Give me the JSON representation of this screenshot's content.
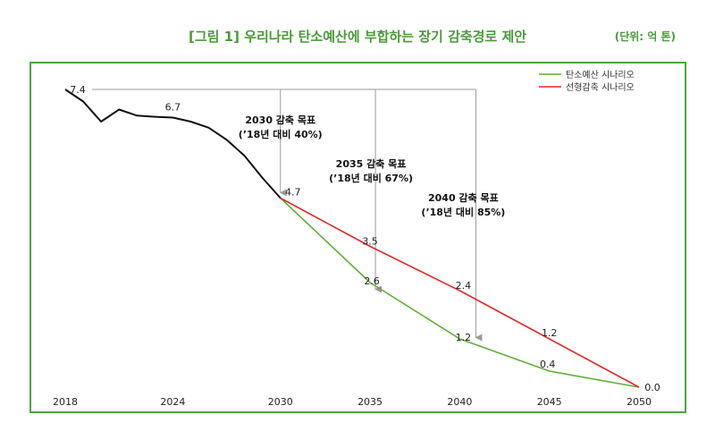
{
  "title": "[그림 1] 우리나라 탄소예산에 부합하는 장기 감축경로 제안",
  "unit": "(단위: 억 톤)",
  "colors": {
    "history": "#111111",
    "carbon_budget": "#5fae3a",
    "linear": "#e02a2a",
    "frame": "#4aa63e",
    "title": "#4a9a3a",
    "guide": "#9a9a9a"
  },
  "chart_data": {
    "type": "line",
    "x_ticks": [
      2018,
      2024,
      2030,
      2035,
      2040,
      2045,
      2050
    ],
    "xlim": [
      2018,
      2050
    ],
    "ylim": [
      0,
      8
    ],
    "series": [
      {
        "name": "history",
        "x": [
          2018,
          2019,
          2020,
          2021,
          2022,
          2023,
          2024,
          2025,
          2026,
          2027,
          2028,
          2029,
          2030
        ],
        "values": [
          7.4,
          7.1,
          6.6,
          6.9,
          6.75,
          6.72,
          6.7,
          6.6,
          6.45,
          6.15,
          5.75,
          5.2,
          4.7
        ]
      },
      {
        "name": "탄소예산 시나리오",
        "x": [
          2030,
          2035,
          2040,
          2045,
          2050
        ],
        "values": [
          4.7,
          2.6,
          1.2,
          0.4,
          0.0
        ]
      },
      {
        "name": "선형감축 시나리오",
        "x": [
          2030,
          2035,
          2040,
          2045,
          2050
        ],
        "values": [
          4.7,
          3.5,
          2.4,
          1.2,
          0.0
        ]
      }
    ],
    "data_labels": [
      {
        "x": 2018,
        "y": 7.4,
        "text": "7.4"
      },
      {
        "x": 2024,
        "y": 6.7,
        "text": "6.7"
      },
      {
        "x": 2030,
        "y": 4.7,
        "text": "4.7"
      },
      {
        "x": 2035,
        "y": 3.5,
        "text": "3.5"
      },
      {
        "x": 2035,
        "y": 2.6,
        "text": "2.6"
      },
      {
        "x": 2040,
        "y": 2.4,
        "text": "2.4"
      },
      {
        "x": 2040,
        "y": 1.2,
        "text": "1.2"
      },
      {
        "x": 2045,
        "y": 1.2,
        "text": "1.2"
      },
      {
        "x": 2045,
        "y": 0.4,
        "text": "0.4"
      },
      {
        "x": 2050,
        "y": 0.0,
        "text": "0.0"
      }
    ],
    "annotations": [
      {
        "year": 2030,
        "line1": "2030 감축 목표",
        "line2": "(’18년 대비 40%)"
      },
      {
        "year": 2035,
        "line1": "2035 감축 목표",
        "line2": "(’18년 대비 67%)"
      },
      {
        "year": 2040,
        "line1": "2040 감축 목표",
        "line2": "(’18년 대비 85%)"
      }
    ],
    "legend": [
      "탄소예산 시나리오",
      "선형감축 시나리오"
    ],
    "legend_position": "top-right"
  }
}
